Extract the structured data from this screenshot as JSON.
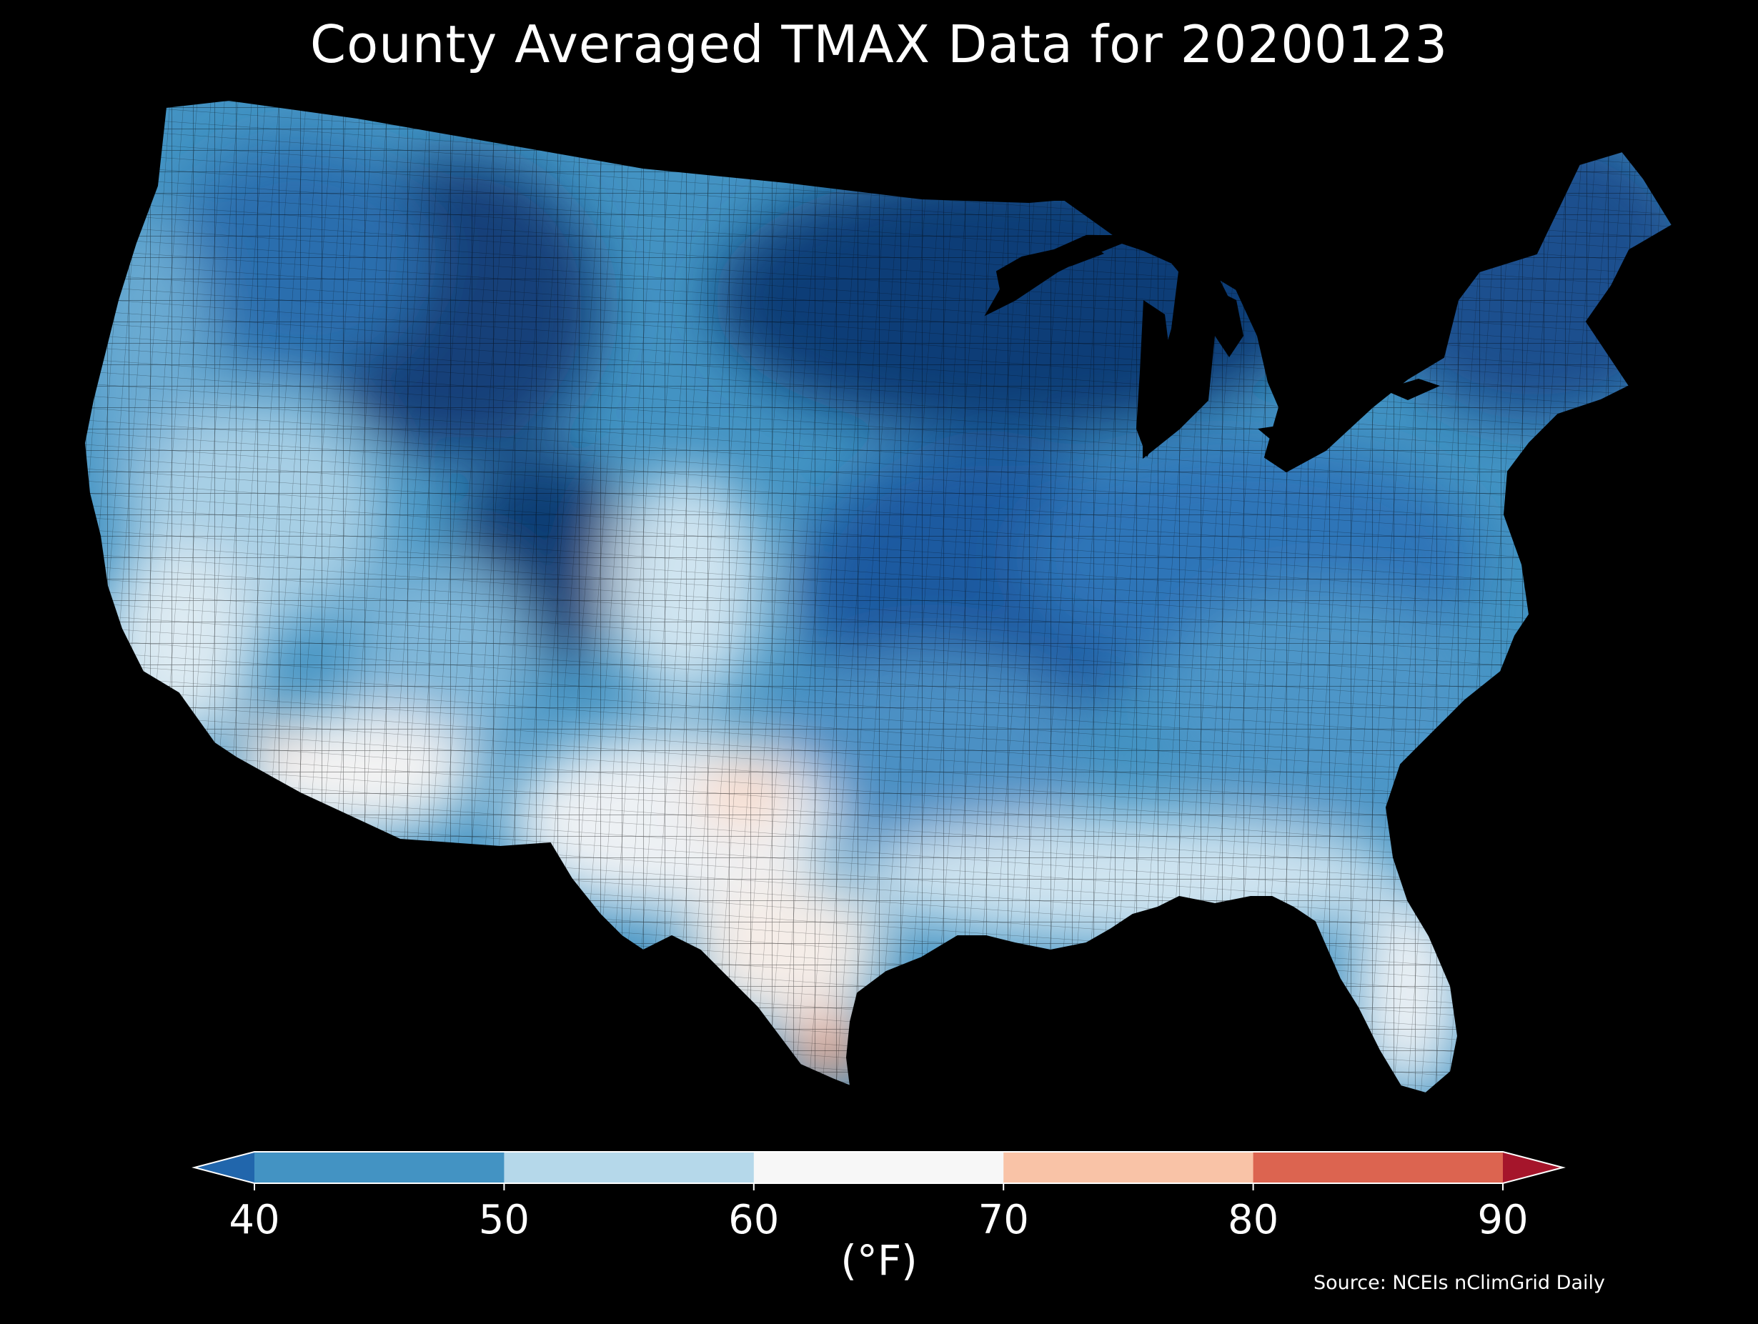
{
  "title": "County Averaged TMAX Data for 20200123",
  "source": "Source: NCEIs nClimGrid Daily",
  "map": {
    "region": "Contiguous United States",
    "variable": "TMAX",
    "date": "20200123",
    "background_color": "#000000",
    "county_border_color": "#000000",
    "regional_colors": [
      {
        "region": "northern-plains-upper-midwest",
        "color": "#0b3d77",
        "approx_tmax_f": "below 40"
      },
      {
        "region": "northern-rockies",
        "color": "#1a5494",
        "approx_tmax_f": "below 40"
      },
      {
        "region": "central-plains-midwest",
        "color": "#2166ac",
        "approx_tmax_f": "about 40"
      },
      {
        "region": "northeast",
        "color": "#1f5fa5",
        "approx_tmax_f": "below 40"
      },
      {
        "region": "pacific-northwest",
        "color": "#3c83bd",
        "approx_tmax_f": "40-50"
      },
      {
        "region": "southeast-interior",
        "color": "#4393c3",
        "approx_tmax_f": "40-50"
      },
      {
        "region": "great-basin",
        "color": "#92c5de",
        "approx_tmax_f": "50-60"
      },
      {
        "region": "southern-plains",
        "color": "#d1e5f0",
        "approx_tmax_f": "60-70"
      },
      {
        "region": "gulf-coast-florida",
        "color": "#e6eff6",
        "approx_tmax_f": "60-70"
      },
      {
        "region": "desert-southwest",
        "color": "#f7f7f7",
        "approx_tmax_f": "60-70"
      },
      {
        "region": "south-texas",
        "color": "#fbe3d6",
        "approx_tmax_f": "70-80"
      },
      {
        "region": "lower-rio-grande",
        "color": "#f4a582",
        "approx_tmax_f": "70-80"
      }
    ]
  },
  "colorbar": {
    "label": "(°F)",
    "ticks": [
      "40",
      "50",
      "60",
      "70",
      "80",
      "90"
    ],
    "bins": [
      {
        "range": "<40",
        "color": "#2166ac"
      },
      {
        "range": "40-50",
        "color": "#4393c3"
      },
      {
        "range": "50-60",
        "color": "#b5d8ea"
      },
      {
        "range": "60-70",
        "color": "#f7f7f7"
      },
      {
        "range": "70-80",
        "color": "#f9c3a7"
      },
      {
        "range": "80-90",
        "color": "#dc6450"
      },
      {
        "range": ">90",
        "color": "#a5152b"
      }
    ],
    "extend": "both",
    "orientation": "horizontal"
  }
}
